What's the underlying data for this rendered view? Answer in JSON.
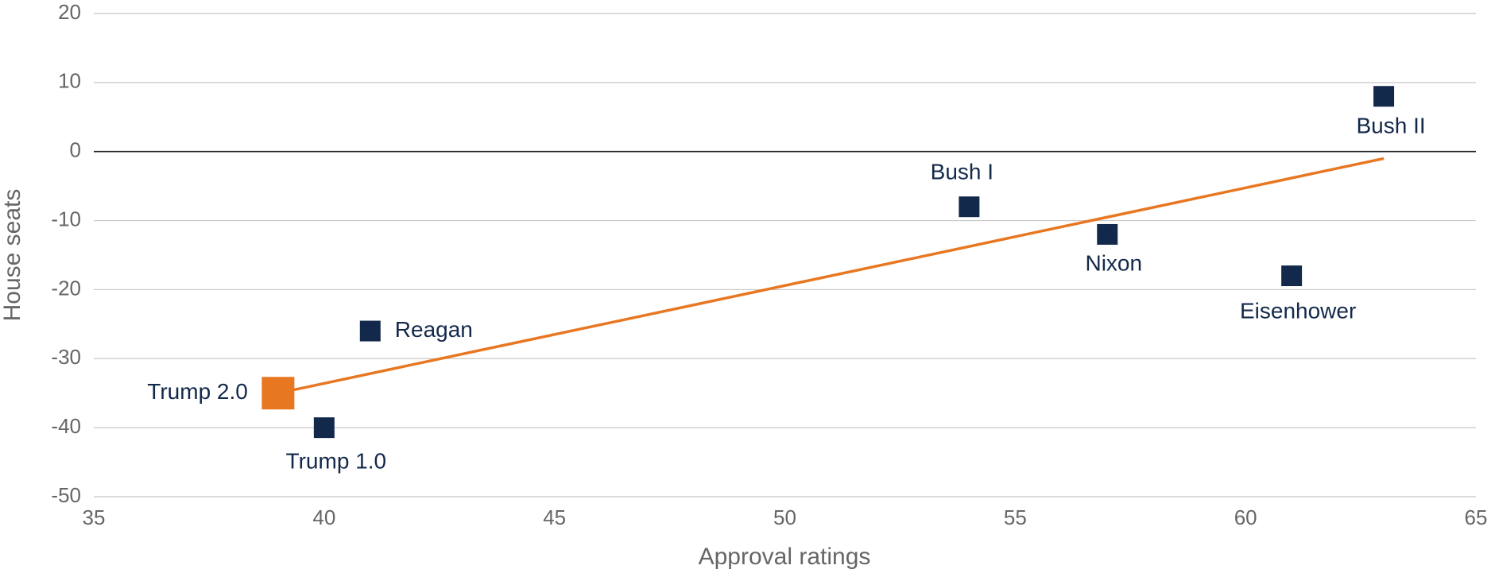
{
  "chart_data": {
    "type": "scatter",
    "x_label": "Approval ratings",
    "y_label": "House seats",
    "point_labels": [
      "Trump 2.0",
      "Trump 1.0",
      "Reagan",
      "Bush I",
      "Nixon",
      "Eisenhower",
      "Bush II"
    ],
    "x": [
      39,
      40,
      41,
      54,
      57,
      61,
      63
    ],
    "values": [
      -35,
      -40,
      -26,
      -8,
      -12,
      -18,
      8
    ],
    "color": "#13294b",
    "colors": [
      "#e87722",
      "#13294b",
      "#13294b",
      "#13294b",
      "#13294b",
      "#13294b",
      "#13294b"
    ],
    "trendline": {
      "x": [
        39,
        63
      ],
      "values": [
        -35,
        -1
      ],
      "color": "#e87722"
    },
    "xlim": [
      35,
      65
    ],
    "xticks": [
      35,
      40,
      45,
      50,
      55,
      60,
      65
    ],
    "ylim": [
      -50,
      20
    ],
    "yticks": [
      -50,
      -40,
      -30,
      -20,
      -10,
      0,
      10,
      20
    ],
    "grid": true
  }
}
